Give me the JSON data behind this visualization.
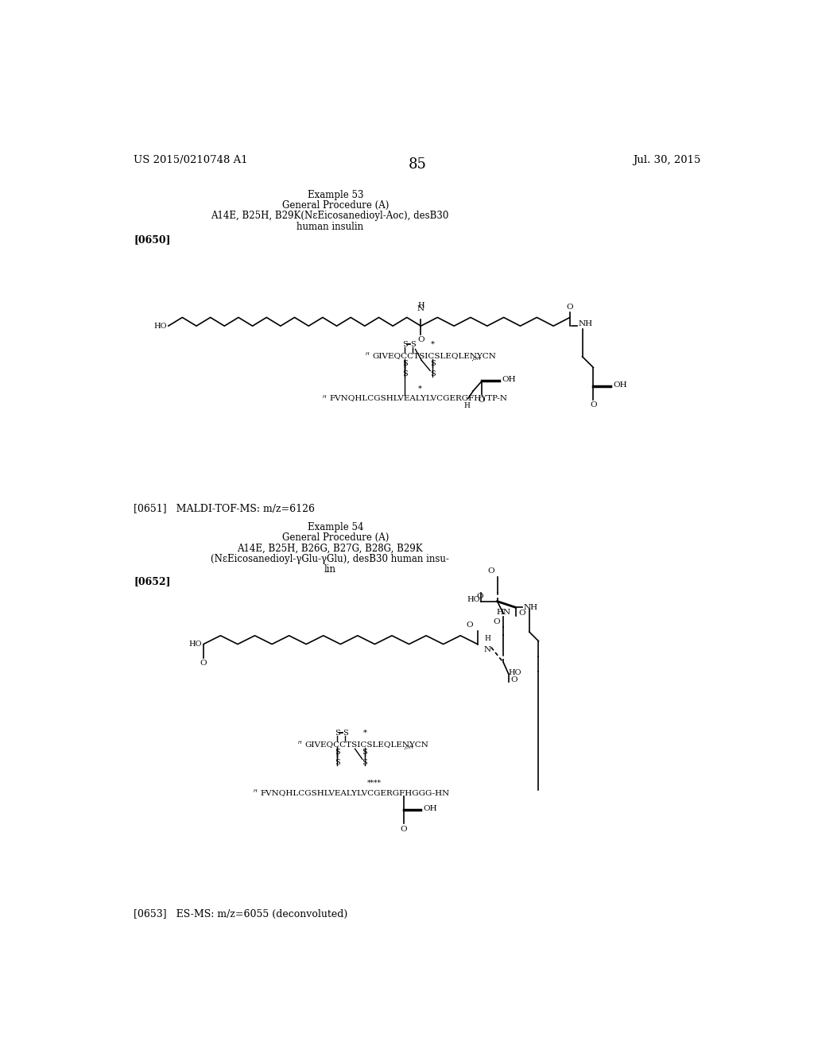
{
  "background_color": "#ffffff",
  "header_left": "US 2015/0210748 A1",
  "header_right": "Jul. 30, 2015",
  "page_number": "85",
  "example53_title": "Example 53",
  "example53_proc": "General Procedure (A)",
  "example53_desc1": "A14E, B25H, B29K(NεEicosanedioyl-Aoc), desB30",
  "example53_desc2": "human insulin",
  "tag650": "[0650]",
  "tag651_text": "[0651]   MALDI-TOF-MS: m/z=6126",
  "example54_title": "Example 54",
  "example54_proc": "General Procedure (A)",
  "example54_desc1": "A14E, B25H, B26G, B27G, B28G, B29K",
  "example54_desc2": "(NεEicosanedioyl-γGlu-γGlu), desB30 human insu-",
  "example54_desc3": "lin",
  "tag652": "[0652]",
  "tag653_text": "[0653]   ES-MS: m/z=6055 (deconvoluted)"
}
